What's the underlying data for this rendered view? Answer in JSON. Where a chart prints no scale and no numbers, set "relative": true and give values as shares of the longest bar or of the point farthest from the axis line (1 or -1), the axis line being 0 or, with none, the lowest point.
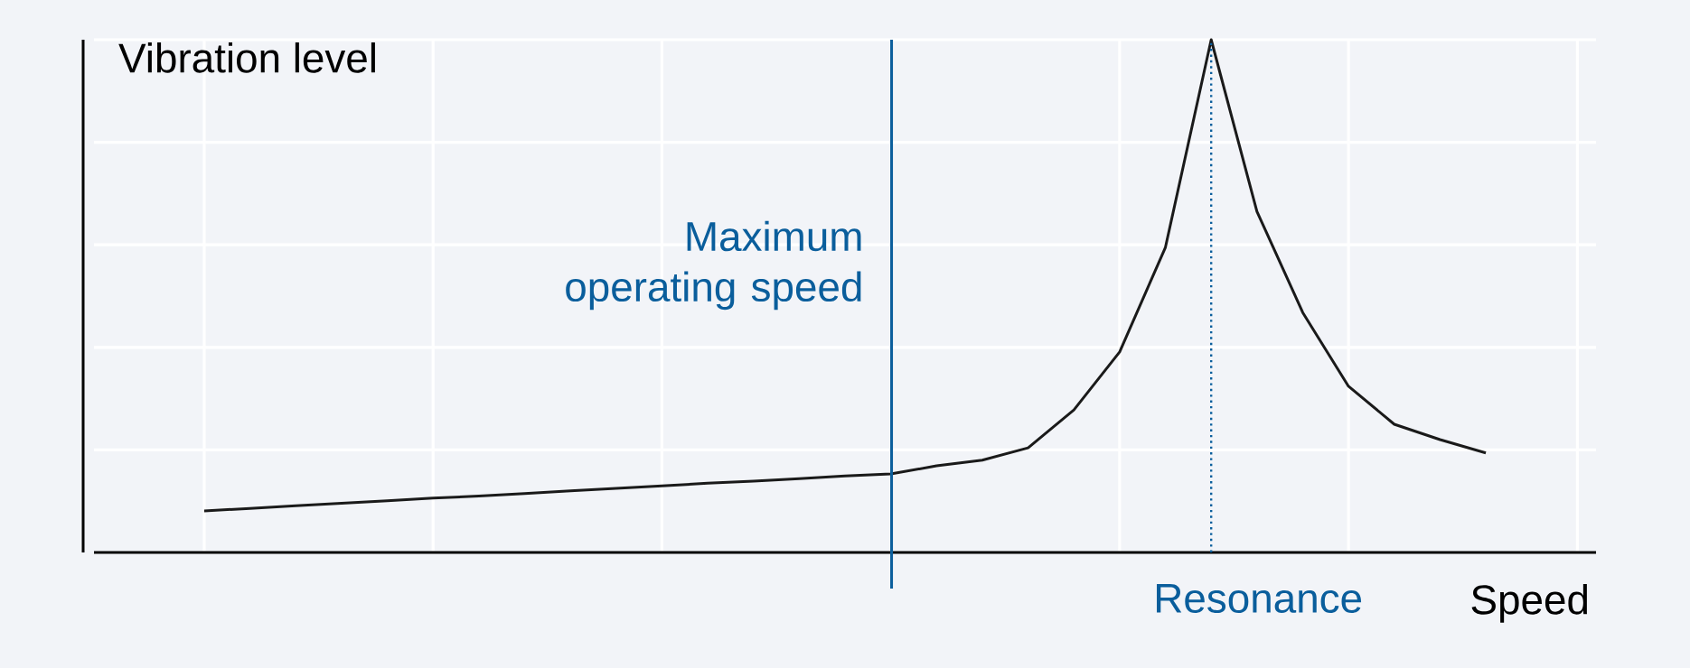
{
  "chart_data": {
    "type": "line",
    "relative": true,
    "xlabel": "Speed",
    "ylabel": "Vibration level",
    "categories": [
      null,
      null,
      null,
      null,
      null,
      null,
      null,
      null,
      null,
      null,
      null,
      null,
      null,
      null,
      null,
      null,
      null,
      null,
      null,
      null,
      null,
      null,
      null,
      null,
      null,
      null,
      null,
      null,
      null
    ],
    "series": [
      {
        "color": "#1a1a1a",
        "values": [
          0.081,
          0.086,
          0.091,
          0.096,
          0.101,
          0.106,
          0.11,
          0.115,
          0.12,
          0.125,
          0.13,
          0.135,
          0.139,
          0.144,
          0.149,
          0.153,
          0.169,
          0.18,
          0.204,
          0.278,
          0.391,
          0.595,
          1.0,
          0.665,
          0.468,
          0.324,
          0.25,
          0.22,
          0.194
        ]
      }
    ],
    "grid": true,
    "annotations": [
      "Maximum operating speed",
      "Resonance"
    ]
  }
}
